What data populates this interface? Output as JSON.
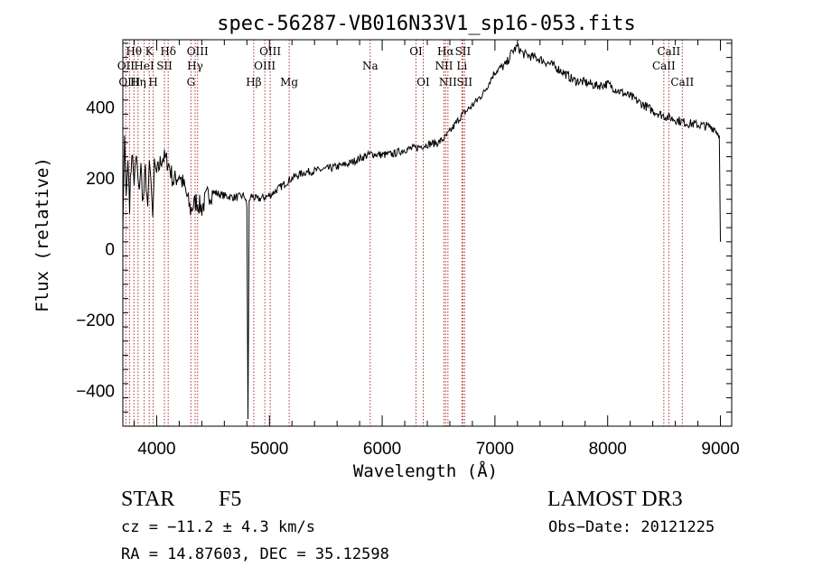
{
  "chart_data": {
    "type": "line",
    "title": "spec-56287-VB016N33V1_sp16-053.fits",
    "xlabel": "Wavelength (Å)",
    "ylabel": "Flux (relative)",
    "xlim": [
      3700,
      9100
    ],
    "ylim": [
      -500,
      590
    ],
    "xticks": [
      4000,
      5000,
      6000,
      7000,
      8000,
      9000
    ],
    "yticks": [
      -400,
      -200,
      0,
      200,
      400
    ],
    "series": [
      {
        "name": "spectrum",
        "x": [
          3700,
          3715,
          3730,
          3745,
          3760,
          3780,
          3800,
          3820,
          3840,
          3860,
          3880,
          3900,
          3920,
          3935,
          3950,
          3965,
          3980,
          4000,
          4050,
          4100,
          4150,
          4200,
          4250,
          4300,
          4350,
          4400,
          4450,
          4500,
          4600,
          4700,
          4780,
          4800,
          4810,
          4820,
          4840,
          4860,
          4900,
          5000,
          5100,
          5200,
          5300,
          5400,
          5500,
          5600,
          5700,
          5800,
          5900,
          6000,
          6100,
          6200,
          6300,
          6400,
          6500,
          6560,
          6600,
          6700,
          6800,
          6900,
          7000,
          7100,
          7150,
          7200,
          7250,
          7300,
          7400,
          7500,
          7600,
          7700,
          7800,
          7900,
          8000,
          8100,
          8200,
          8300,
          8400,
          8500,
          8600,
          8700,
          8800,
          8900,
          8950,
          8990,
          9000
        ],
        "y": [
          50,
          320,
          150,
          250,
          130,
          280,
          190,
          260,
          160,
          230,
          130,
          220,
          120,
          250,
          190,
          90,
          230,
          210,
          260,
          245,
          190,
          210,
          170,
          110,
          135,
          115,
          150,
          160,
          150,
          145,
          150,
          120,
          -480,
          135,
          150,
          145,
          140,
          150,
          175,
          200,
          215,
          220,
          225,
          232,
          240,
          255,
          268,
          265,
          268,
          280,
          285,
          295,
          300,
          315,
          330,
          375,
          405,
          440,
          500,
          520,
          555,
          570,
          550,
          545,
          535,
          520,
          500,
          475,
          470,
          460,
          465,
          445,
          430,
          410,
          390,
          375,
          365,
          355,
          350,
          345,
          340,
          320,
          20
        ]
      }
    ],
    "lines": [
      {
        "label": "Hθ",
        "x": 3798,
        "row": 1
      },
      {
        "label": "OII",
        "x": 3727,
        "row": 2
      },
      {
        "label": "OIII",
        "x": 3759,
        "row": 3
      },
      {
        "label": "Hη",
        "x": 3835,
        "row": 3
      },
      {
        "label": "HeI",
        "x": 3889,
        "row": 2
      },
      {
        "label": "K",
        "x": 3934,
        "row": 1
      },
      {
        "label": "SII",
        "x": 4069,
        "row": 2
      },
      {
        "label": "H",
        "x": 3969,
        "row": 3
      },
      {
        "label": "Hδ",
        "x": 4102,
        "row": 1
      },
      {
        "label": "OIII",
        "x": 4363,
        "row": 1
      },
      {
        "label": "Hγ",
        "x": 4341,
        "row": 2
      },
      {
        "label": "G",
        "x": 4304,
        "row": 3
      },
      {
        "label": "Hβ",
        "x": 4861,
        "row": 3
      },
      {
        "label": "OIII",
        "x": 5007,
        "row": 1
      },
      {
        "label": "OIII",
        "x": 4959,
        "row": 2
      },
      {
        "label": "Mg",
        "x": 5175,
        "row": 3
      },
      {
        "label": "Na",
        "x": 5894,
        "row": 2
      },
      {
        "label": "OI",
        "x": 6300,
        "row": 1
      },
      {
        "label": "OI",
        "x": 6364,
        "row": 3
      },
      {
        "label": "Hα",
        "x": 6563,
        "row": 1
      },
      {
        "label": "SII",
        "x": 6716,
        "row": 1
      },
      {
        "label": "NII",
        "x": 6548,
        "row": 2
      },
      {
        "label": "Li",
        "x": 6707,
        "row": 2
      },
      {
        "label": "NII",
        "x": 6583,
        "row": 3
      },
      {
        "label": "SII",
        "x": 6731,
        "row": 3
      },
      {
        "label": "CaII",
        "x": 8542,
        "row": 1
      },
      {
        "label": "CaII",
        "x": 8498,
        "row": 2
      },
      {
        "label": "CaII",
        "x": 8662,
        "row": 3
      }
    ]
  },
  "info": {
    "object_class": "STAR",
    "subclass": "F5",
    "survey": "LAMOST DR3",
    "redshift": "cz = −11.2 ± 4.3 km/s",
    "obs_date": "Obs−Date: 20121225",
    "coords": "RA =  14.87603, DEC =  35.12598"
  }
}
